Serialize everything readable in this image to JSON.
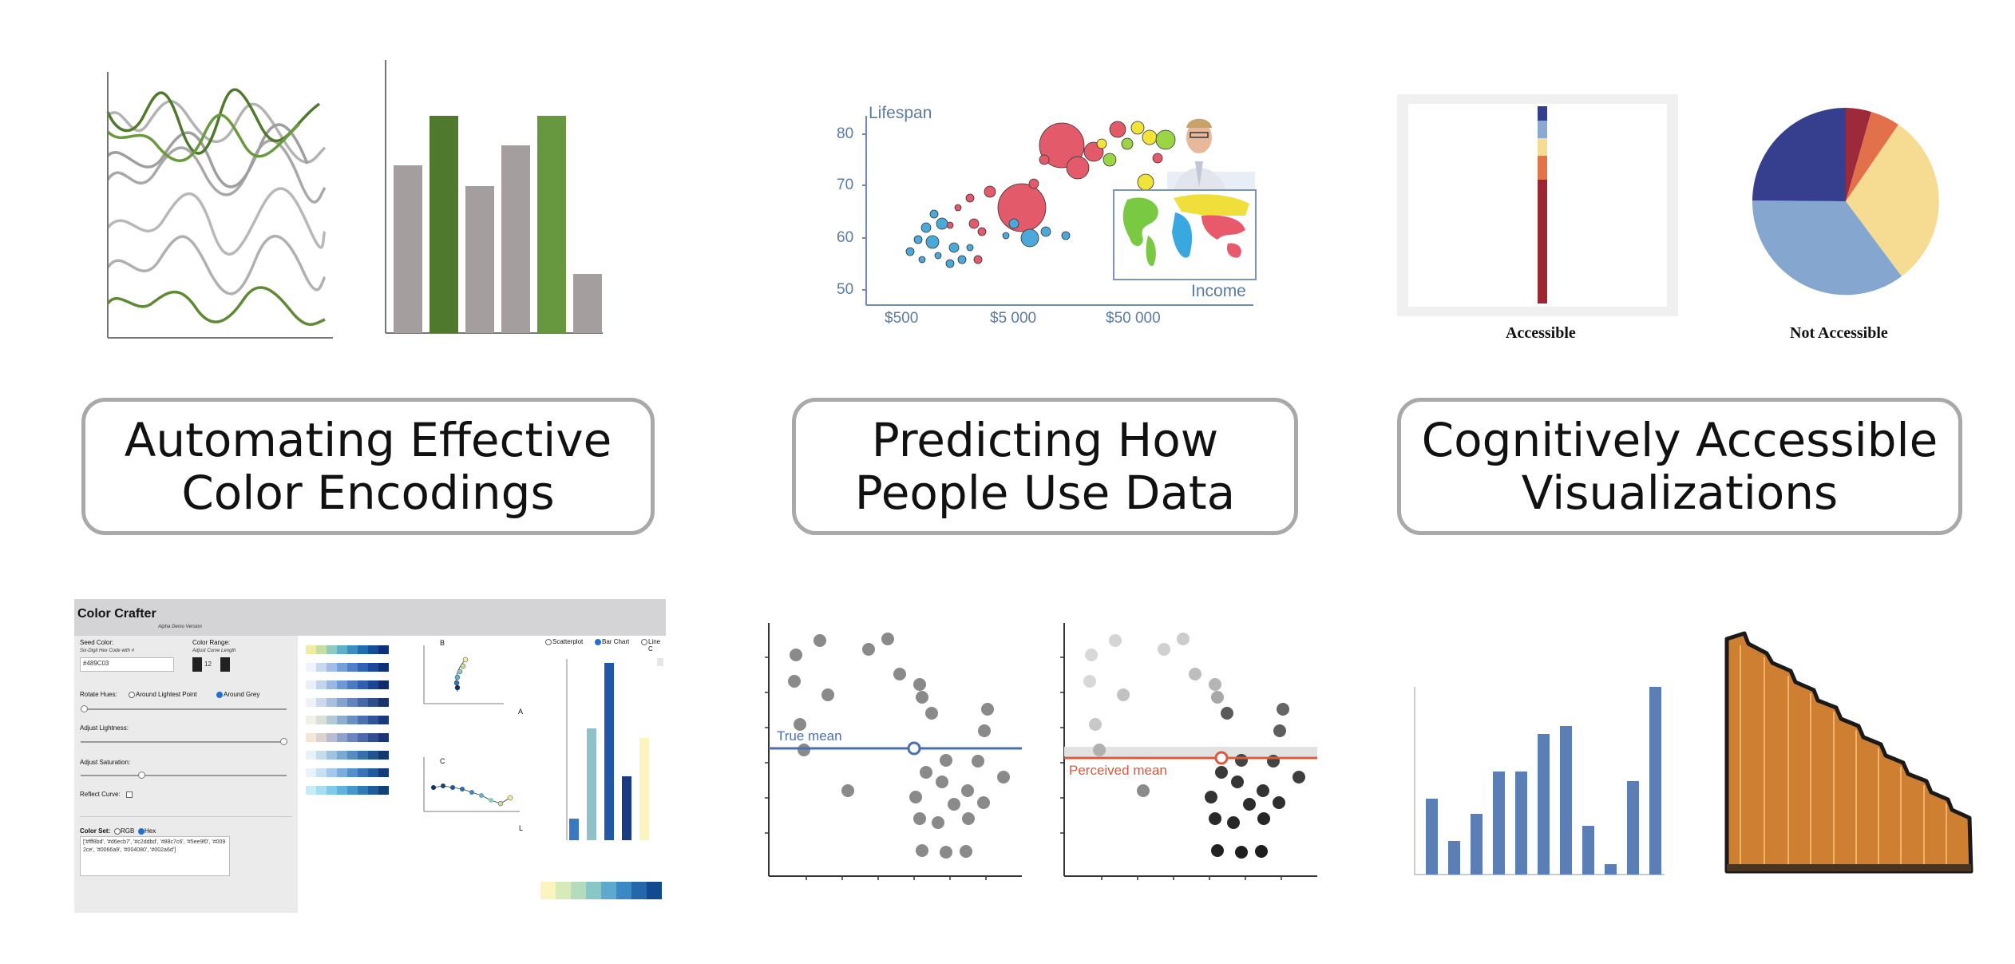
{
  "cards": [
    {
      "line1": "Automating Effective",
      "line2": "Color Encodings"
    },
    {
      "line1": "Predicting How",
      "line2": "People Use Data"
    },
    {
      "line1": "Cognitively Accessible",
      "line2": "Visualizations"
    }
  ],
  "gapminder": {
    "ylabel": "Lifespan",
    "xlabel": "Income",
    "yticks": [
      "80",
      "70",
      "60",
      "50"
    ],
    "xticks": [
      "$500",
      "$5 000",
      "$50 000"
    ]
  },
  "accessibility": {
    "left_caption": "Accessible",
    "right_caption": "Not Accessible"
  },
  "mean_labels": {
    "true_mean": "True mean",
    "perceived_mean": "Perceived mean"
  },
  "color_crafter": {
    "title": "Color Crafter",
    "subtitle": "Alpha Demo Version",
    "seed_color_label": "Seed Color:",
    "seed_color_hint": "Six-Digit Hex Code with #",
    "seed_color_value": "#489C03",
    "color_range_label": "Color Range:",
    "color_range_hint": "Adjust Curve Length",
    "color_range_value": "12",
    "rotate_hues_label": "Rotate Hues:",
    "rotate_opt1": "Around Lightest Point",
    "rotate_opt2": "Around Grey",
    "adjust_lightness": "Adjust Lightness:",
    "adjust_saturation": "Adjust Saturation:",
    "reflect_curve": "Reflect Curve:",
    "color_set_label": "Color Set:",
    "color_set_rgb": "RGB",
    "color_set_hex": "Hex",
    "color_set_value": "['#fff8bd', '#d6ecb7', '#c2ddbd', '#88c7c6', '#5ee9f0', '#0092ce', '#0066a9', '#004080', '#002a6d']",
    "chart_opts": [
      "Scatterplot",
      "Bar Chart",
      "Line C"
    ],
    "plot_b": "B",
    "plot_a": "A",
    "plot_c": "C",
    "plot_l": "L"
  }
}
